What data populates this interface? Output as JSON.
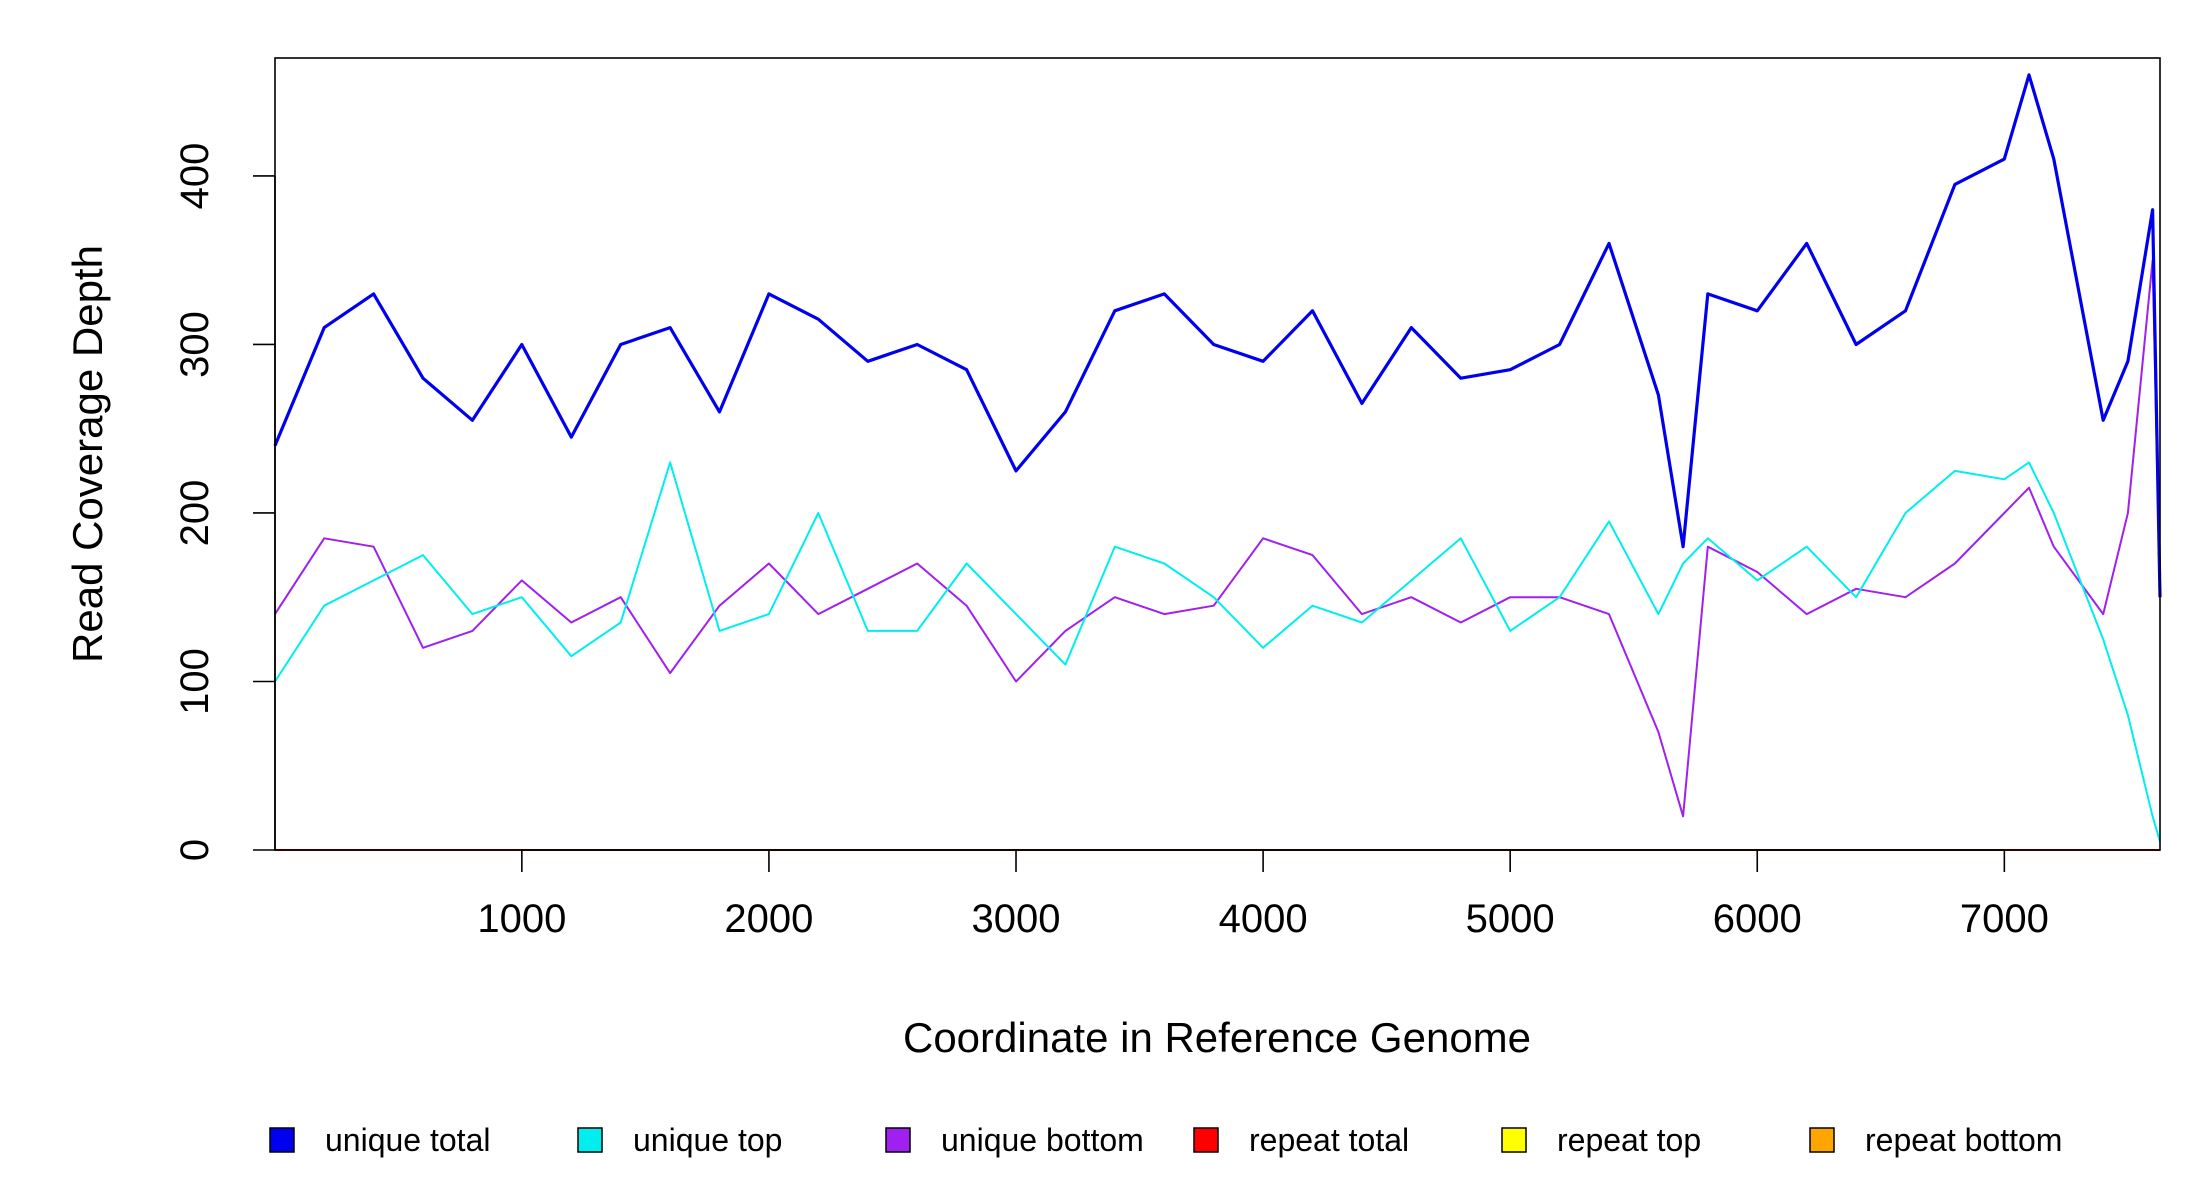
{
  "chart_data": {
    "type": "line",
    "title": "",
    "xlabel": "Coordinate in Reference Genome",
    "ylabel": "Read Coverage Depth",
    "xlim": [
      1,
      7630
    ],
    "ylim": [
      0,
      470
    ],
    "x_ticks": [
      1000,
      2000,
      3000,
      4000,
      5000,
      6000,
      7000
    ],
    "y_ticks": [
      0,
      100,
      200,
      300,
      400
    ],
    "grid": false,
    "legend_position": "bottom",
    "x": [
      1,
      200,
      400,
      600,
      800,
      1000,
      1200,
      1400,
      1600,
      1800,
      2000,
      2200,
      2400,
      2600,
      2800,
      3000,
      3200,
      3400,
      3600,
      3800,
      4000,
      4200,
      4400,
      4600,
      4800,
      5000,
      5200,
      5400,
      5600,
      5700,
      5800,
      6000,
      6200,
      6400,
      6600,
      6800,
      7000,
      7100,
      7200,
      7400,
      7500,
      7600,
      7630
    ],
    "series": [
      {
        "name": "unique total",
        "color": "#0000ee",
        "values": [
          240,
          310,
          330,
          280,
          255,
          300,
          245,
          300,
          310,
          260,
          330,
          315,
          290,
          300,
          285,
          225,
          260,
          320,
          330,
          300,
          290,
          320,
          265,
          310,
          280,
          285,
          300,
          360,
          270,
          180,
          330,
          320,
          360,
          300,
          320,
          395,
          410,
          460,
          410,
          255,
          290,
          380,
          150
        ]
      },
      {
        "name": "unique top",
        "color": "#00eeee",
        "values": [
          100,
          145,
          160,
          175,
          140,
          150,
          115,
          135,
          230,
          130,
          140,
          200,
          130,
          130,
          170,
          140,
          110,
          180,
          170,
          150,
          120,
          145,
          135,
          160,
          185,
          130,
          150,
          195,
          140,
          170,
          185,
          160,
          180,
          150,
          200,
          225,
          220,
          230,
          200,
          125,
          80,
          20,
          5
        ]
      },
      {
        "name": "unique bottom",
        "color": "#a020f0",
        "values": [
          140,
          185,
          180,
          120,
          130,
          160,
          135,
          150,
          105,
          145,
          170,
          140,
          155,
          170,
          145,
          100,
          130,
          150,
          140,
          145,
          185,
          175,
          140,
          150,
          135,
          150,
          150,
          140,
          70,
          20,
          180,
          165,
          140,
          155,
          150,
          170,
          200,
          215,
          180,
          140,
          200,
          350,
          150
        ]
      },
      {
        "name": "repeat total",
        "color": "#ff0000",
        "values": [
          0,
          0,
          0,
          0,
          0,
          0,
          0,
          0,
          0,
          0,
          0,
          0,
          0,
          0,
          0,
          0,
          0,
          0,
          0,
          0,
          0,
          0,
          0,
          0,
          0,
          0,
          0,
          0,
          0,
          0,
          0,
          0,
          0,
          0,
          0,
          0,
          0,
          0,
          0,
          0,
          0,
          0,
          0
        ]
      },
      {
        "name": "repeat top",
        "color": "#ffff00",
        "values": [
          0,
          0,
          0,
          0,
          0,
          0,
          0,
          0,
          0,
          0,
          0,
          0,
          0,
          0,
          0,
          0,
          0,
          0,
          0,
          0,
          0,
          0,
          0,
          0,
          0,
          0,
          0,
          0,
          0,
          0,
          0,
          0,
          0,
          0,
          0,
          0,
          0,
          0,
          0,
          0,
          0,
          0,
          0
        ]
      },
      {
        "name": "repeat bottom",
        "color": "#ffa500",
        "values": [
          0,
          0,
          0,
          0,
          0,
          0,
          0,
          0,
          0,
          0,
          0,
          0,
          0,
          0,
          0,
          0,
          0,
          0,
          0,
          0,
          0,
          0,
          0,
          0,
          0,
          0,
          0,
          0,
          0,
          0,
          0,
          0,
          0,
          0,
          0,
          0,
          0,
          0,
          0,
          0,
          0,
          0,
          0
        ]
      }
    ]
  }
}
